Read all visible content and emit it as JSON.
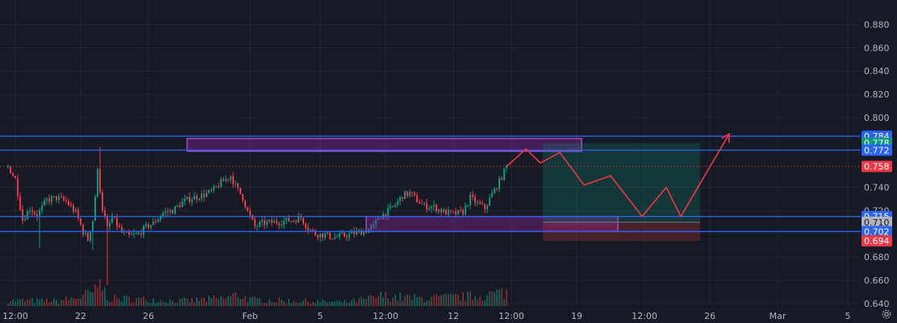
{
  "chart_data": {
    "type": "candlestick",
    "ylim": [
      0.64,
      0.89
    ],
    "price_axis_ticks": [
      "0.880",
      "0.860",
      "0.840",
      "0.820",
      "0.800",
      "0.740",
      "0.720",
      "0.680",
      "0.660",
      "0.640"
    ],
    "time_axis_ticks": [
      {
        "label": "12:00",
        "bar": 2
      },
      {
        "label": "22",
        "bar": 29
      },
      {
        "label": "26",
        "bar": 57
      },
      {
        "label": "Feb",
        "bar": 99
      },
      {
        "label": "5",
        "bar": 128
      },
      {
        "label": "12:00",
        "bar": 155
      },
      {
        "label": "12",
        "bar": 183
      },
      {
        "label": "12:00",
        "bar": 207
      },
      {
        "label": "19",
        "bar": 234
      },
      {
        "label": "12:00",
        "bar": 262
      },
      {
        "label": "26",
        "bar": 289
      },
      {
        "label": "Mar",
        "bar": 317
      },
      {
        "label": "5",
        "bar": 346
      }
    ],
    "last_bar_index": 206,
    "candle_path": [
      [
        0,
        0.758
      ],
      [
        3,
        0.747
      ],
      [
        6,
        0.712
      ],
      [
        9,
        0.722
      ],
      [
        12,
        0.716
      ],
      [
        16,
        0.729
      ],
      [
        20,
        0.731
      ],
      [
        24,
        0.728
      ],
      [
        28,
        0.718
      ],
      [
        31,
        0.702
      ],
      [
        33,
        0.695
      ],
      [
        35,
        0.712
      ],
      [
        37,
        0.754
      ],
      [
        39,
        0.722
      ],
      [
        41,
        0.704
      ],
      [
        43,
        0.714
      ],
      [
        45,
        0.708
      ],
      [
        47,
        0.701
      ],
      [
        50,
        0.698
      ],
      [
        54,
        0.7
      ],
      [
        57,
        0.706
      ],
      [
        60,
        0.709
      ],
      [
        64,
        0.718
      ],
      [
        68,
        0.72
      ],
      [
        72,
        0.727
      ],
      [
        76,
        0.731
      ],
      [
        80,
        0.733
      ],
      [
        84,
        0.736
      ],
      [
        88,
        0.744
      ],
      [
        92,
        0.75
      ],
      [
        94,
        0.741
      ],
      [
        97,
        0.731
      ],
      [
        99,
        0.719
      ],
      [
        102,
        0.706
      ],
      [
        105,
        0.709
      ],
      [
        110,
        0.71
      ],
      [
        114,
        0.711
      ],
      [
        118,
        0.712
      ],
      [
        121,
        0.714
      ],
      [
        124,
        0.705
      ],
      [
        127,
        0.7
      ],
      [
        131,
        0.699
      ],
      [
        135,
        0.697
      ],
      [
        140,
        0.699
      ],
      [
        144,
        0.701
      ],
      [
        148,
        0.703
      ],
      [
        151,
        0.706
      ],
      [
        153,
        0.714
      ],
      [
        156,
        0.718
      ],
      [
        160,
        0.725
      ],
      [
        163,
        0.733
      ],
      [
        166,
        0.735
      ],
      [
        169,
        0.729
      ],
      [
        172,
        0.724
      ],
      [
        176,
        0.723
      ],
      [
        180,
        0.719
      ],
      [
        184,
        0.717
      ],
      [
        188,
        0.719
      ],
      [
        191,
        0.731
      ],
      [
        194,
        0.726
      ],
      [
        197,
        0.722
      ],
      [
        200,
        0.734
      ],
      [
        203,
        0.745
      ],
      [
        206,
        0.758
      ]
    ],
    "spikes": [
      [
        38,
        0.775
      ],
      [
        41,
        0.656
      ],
      [
        35,
        0.686
      ],
      [
        13,
        0.688
      ]
    ],
    "volume": {
      "max": 100,
      "profile": [
        [
          0,
          22
        ],
        [
          20,
          20
        ],
        [
          30,
          35
        ],
        [
          37,
          60
        ],
        [
          38,
          95
        ],
        [
          40,
          55
        ],
        [
          42,
          30
        ],
        [
          60,
          25
        ],
        [
          70,
          20
        ],
        [
          90,
          30
        ],
        [
          95,
          45
        ],
        [
          100,
          25
        ],
        [
          120,
          20
        ],
        [
          140,
          15
        ],
        [
          150,
          30
        ],
        [
          155,
          40
        ],
        [
          170,
          30
        ],
        [
          185,
          35
        ],
        [
          195,
          40
        ],
        [
          206,
          55
        ]
      ]
    },
    "horizontal_levels": [
      {
        "price": 0.784,
        "color": "#2962ff"
      },
      {
        "price": 0.772,
        "color": "#2962ff"
      },
      {
        "price": 0.715,
        "color": "#2962ff"
      },
      {
        "price": 0.702,
        "color": "#2962ff"
      }
    ],
    "current_price_line": {
      "price": 0.758,
      "color": "#f23645"
    },
    "zones": [
      {
        "bar_start": 74,
        "bar_end": 237,
        "price_top": 0.782,
        "price_bottom": 0.771,
        "color": "#9c27b0"
      },
      {
        "bar_start": 148,
        "bar_end": 252,
        "price_top": 0.715,
        "price_bottom": 0.702,
        "color": "#9c27b0"
      }
    ],
    "position": {
      "bar_start": 221,
      "bar_end": 286,
      "entry": 0.71,
      "target": 0.778,
      "stop": 0.694,
      "profit_color": "#089981",
      "loss_color": "#f23645"
    },
    "projection_path": [
      [
        206,
        0.758
      ],
      [
        214,
        0.773
      ],
      [
        220,
        0.761
      ],
      [
        228,
        0.77
      ],
      [
        238,
        0.742
      ],
      [
        249,
        0.75
      ],
      [
        262,
        0.715
      ],
      [
        272,
        0.74
      ],
      [
        278,
        0.715
      ],
      [
        298,
        0.786
      ]
    ],
    "projection_color": "#f23645",
    "price_tags": [
      {
        "label": "0.784",
        "price": 0.784,
        "bg": "#2962ff",
        "text": "light"
      },
      {
        "label": "0.778",
        "price": 0.778,
        "bg": "#089981",
        "text": "light"
      },
      {
        "label": "0.772",
        "price": 0.772,
        "bg": "#2962ff",
        "text": "light"
      },
      {
        "label": "0.758",
        "price": 0.758,
        "bg": "#f23645",
        "text": "light"
      },
      {
        "label": "0.715",
        "price": 0.715,
        "bg": "#2962ff",
        "text": "light"
      },
      {
        "label": "0.710",
        "price": 0.71,
        "bg": "#b2b5be",
        "text": "dark"
      },
      {
        "label": "0.702",
        "price": 0.702,
        "bg": "#2962ff",
        "text": "light"
      },
      {
        "label": "0.694",
        "price": 0.694,
        "bg": "#f23645",
        "text": "light"
      }
    ],
    "colors": {
      "background": "#161a25",
      "grid": "#232733",
      "up": "#089981",
      "down": "#f23645",
      "volume_up": "#0b5e55",
      "volume_down": "#7a2730",
      "axis_text": "#b2b5be"
    }
  },
  "icons": {
    "settings": "gear-icon"
  }
}
